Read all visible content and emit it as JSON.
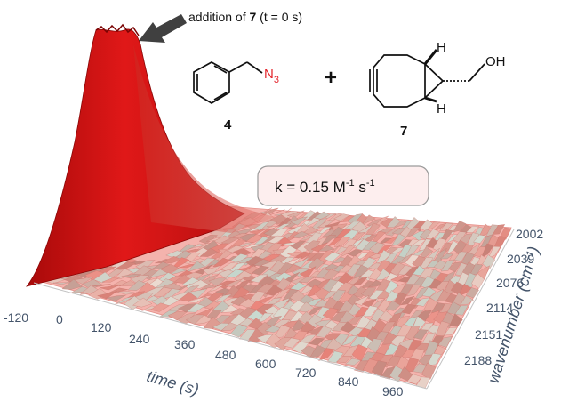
{
  "chart_data": {
    "type": "surface3d",
    "title": "",
    "x_axis": {
      "label": "time (s)",
      "ticks": [
        "-120",
        "0",
        "120",
        "240",
        "360",
        "480",
        "600",
        "720",
        "840",
        "960"
      ],
      "range": [
        -120,
        960
      ]
    },
    "y_axis": {
      "label": "wavenumber (cm⁻¹)",
      "ticks": [
        "2002",
        "2039",
        "2076",
        "2114",
        "2151",
        "2188"
      ],
      "range": [
        2188,
        2002
      ]
    },
    "annotation": {
      "text_prefix": "addition of ",
      "text_bold": "7",
      "text_suffix": " (t = 0 s)"
    },
    "rate_constant": {
      "k_prefix": "k = 0.15 M",
      "exp1": "-1",
      "mid": " s",
      "exp2": "-1"
    },
    "peak": {
      "time_s": 0,
      "wavenumber": 2100,
      "description": "azide band intensity decays to baseline after addition"
    },
    "decay_curve": {
      "time_s": [
        -120,
        0,
        30,
        60,
        120,
        180,
        240,
        360,
        480,
        600,
        720,
        840,
        960
      ],
      "relative_intensity": [
        0.02,
        1.0,
        0.75,
        0.55,
        0.32,
        0.18,
        0.1,
        0.05,
        0.03,
        0.02,
        0.02,
        0.02,
        0.02
      ]
    },
    "colors": {
      "peak": "#d01010",
      "surface": "#f2a6a0",
      "surface_dark": "#b0524c",
      "arrow": "#404040",
      "axis_text": "#44546a",
      "azide": "#e3242b",
      "kbox_fill": "#fdeeee",
      "kbox_stroke": "#9a9a9a"
    }
  },
  "chemistry": {
    "reactant1": {
      "label": "4",
      "group": "N",
      "subscript": "3"
    },
    "plus": "+",
    "reactant2": {
      "label": "7",
      "hydrogen": "H",
      "hydroxyl": "OH"
    }
  }
}
